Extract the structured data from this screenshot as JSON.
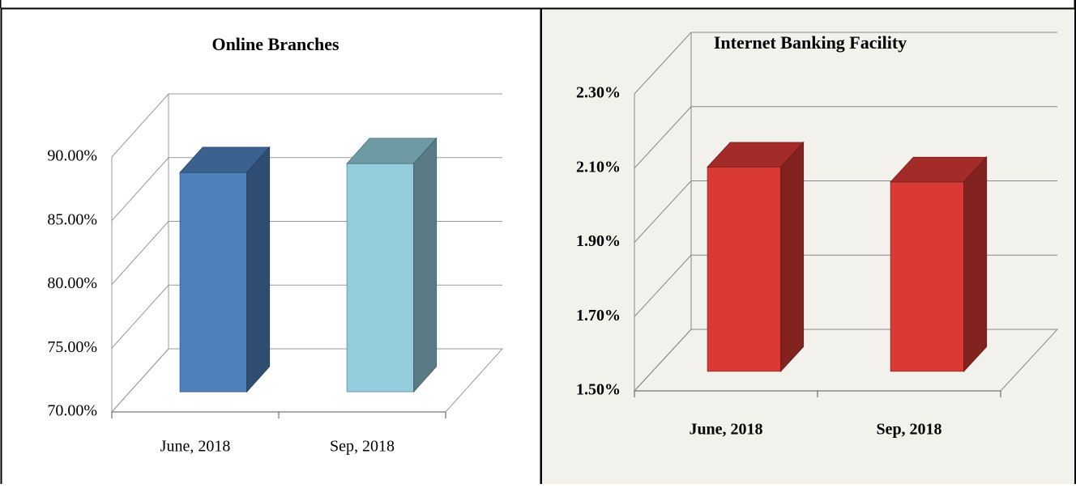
{
  "chart_data": [
    {
      "type": "bar3d",
      "title": "Online Branches",
      "categories": [
        "June, 2018",
        "Sep, 2018"
      ],
      "values": [
        87.2,
        87.9
      ],
      "colors": [
        "#4f81bd",
        "#93cddd"
      ],
      "ylim": [
        70,
        90
      ],
      "yticks": [
        {
          "value": 70,
          "label": "70.00%"
        },
        {
          "value": 75,
          "label": "75.00%"
        },
        {
          "value": 80,
          "label": "80.00%"
        },
        {
          "value": 85,
          "label": "85.00%"
        },
        {
          "value": 90,
          "label": "90.00%"
        }
      ],
      "grid": true
    },
    {
      "type": "bar3d",
      "title": "Internet Banking Facility",
      "categories": [
        "June, 2018",
        "Sep, 2018"
      ],
      "values": [
        2.05,
        2.01
      ],
      "color": "#d93a36",
      "ylim": [
        1.5,
        2.3
      ],
      "yticks": [
        {
          "value": 1.5,
          "label": "1.50%"
        },
        {
          "value": 1.7,
          "label": "1.70%"
        },
        {
          "value": 1.9,
          "label": "1.90%"
        },
        {
          "value": 2.1,
          "label": "2.10%"
        },
        {
          "value": 2.3,
          "label": "2.30%"
        }
      ],
      "grid": true
    }
  ]
}
